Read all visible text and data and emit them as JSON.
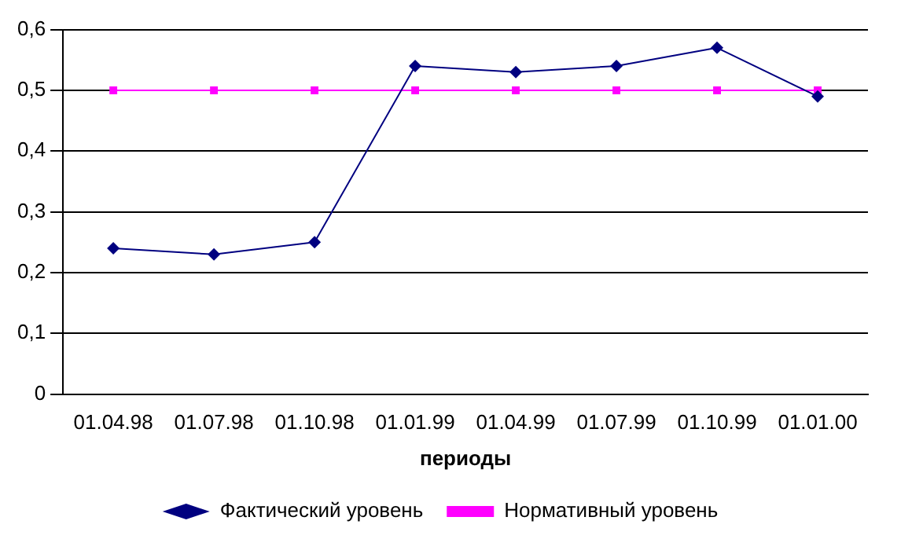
{
  "chart_data": {
    "type": "line",
    "xlabel": "периоды",
    "categories": [
      "01.04.98",
      "01.07.98",
      "01.10.98",
      "01.01.99",
      "01.04.99",
      "01.07.99",
      "01.10.99",
      "01.01.00"
    ],
    "series": [
      {
        "name": "Фактический уровень",
        "color": "#000080",
        "marker": "diamond",
        "values": [
          0.24,
          0.23,
          0.25,
          0.54,
          0.53,
          0.54,
          0.57,
          0.49
        ]
      },
      {
        "name": "Нормативный уровень",
        "color": "#ff00ff",
        "marker": "square",
        "values": [
          0.5,
          0.5,
          0.5,
          0.5,
          0.5,
          0.5,
          0.5,
          0.5
        ]
      }
    ],
    "ylim": [
      0,
      0.6
    ],
    "yticks": [
      0,
      {
        "value": 0.1,
        "label": "0,1"
      },
      {
        "value": 0.2,
        "label": "0,2"
      },
      {
        "value": 0.3,
        "label": "0,3"
      },
      {
        "value": 0.4,
        "label": "0,4"
      },
      {
        "value": 0.5,
        "label": "0,5"
      },
      {
        "value": 0.6,
        "label": "0,6"
      }
    ],
    "grid": "y",
    "legend": "bottom",
    "line_style": "solid"
  }
}
